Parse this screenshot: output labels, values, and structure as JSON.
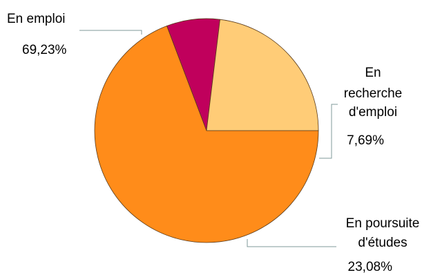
{
  "chart_data": {
    "type": "pie",
    "series": [
      {
        "name": "En emploi",
        "value": 69.23,
        "label_lines": [
          "En emploi"
        ],
        "value_label": "69,23%",
        "color": "#FF8C1A"
      },
      {
        "name": "En recherche d'emploi",
        "value": 7.69,
        "label_lines": [
          "En",
          "recherche",
          "d'emploi"
        ],
        "value_label": "7,69%",
        "color": "#C0005C"
      },
      {
        "name": "En poursuite d'études",
        "value": 23.08,
        "label_lines": [
          "En poursuite",
          "d'études"
        ],
        "value_label": "23,08%",
        "color": "#FFCC77"
      }
    ],
    "start_angle_deg": 0,
    "legend": "none"
  }
}
